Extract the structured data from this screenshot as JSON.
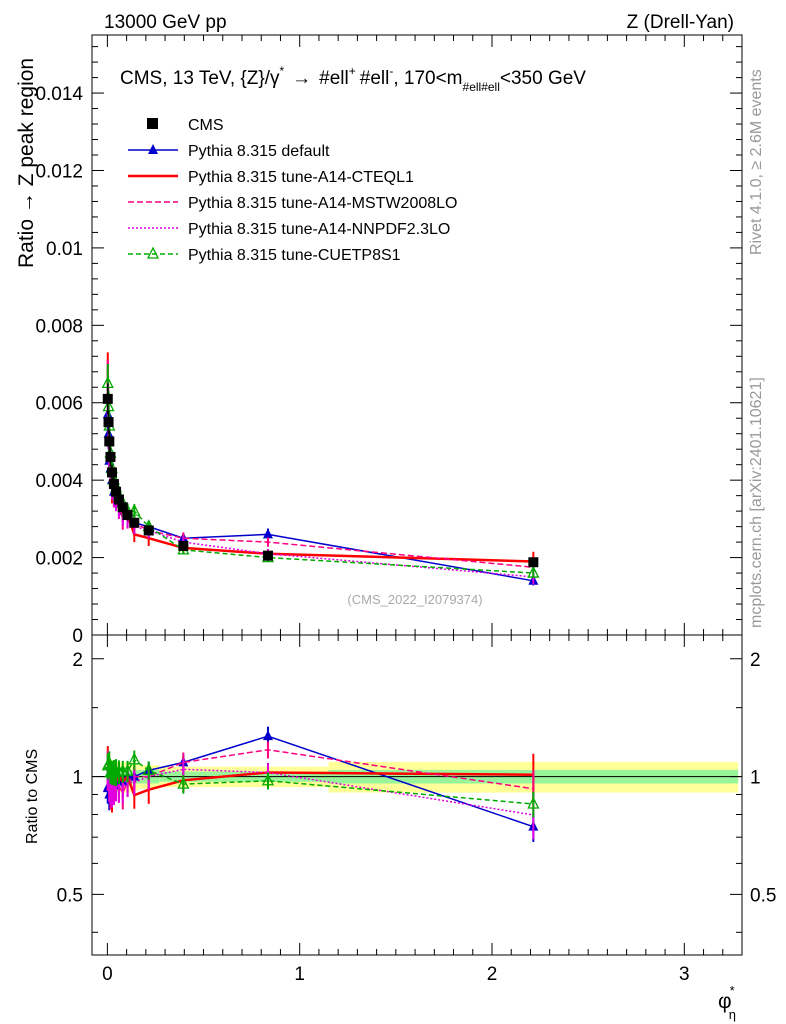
{
  "header": {
    "left": "13000 GeV pp",
    "right": "Z (Drell-Yan)"
  },
  "side_labels": {
    "rivet": "Rivet 4.1.0, ≥ 2.6M events",
    "mcplots": "mcplots.cern.ch [arXiv:2401.10621]"
  },
  "chart_data": {
    "type": "line",
    "title": "CMS, 13 TeV, {Z}/γ* → #ell⁺ #ell⁻, 170<m#ell#ell<350 GeV",
    "title_parts": {
      "a": "CMS, 13 TeV, {Z}/γ",
      "a_sup": "*",
      "arrow": "→",
      "b": "#ell",
      "b_sup": "+",
      "c": "#ell",
      "c_sup": "-",
      "d": ", 170<m",
      "d_sub": "#ell#ell",
      "e": "<350 GeV"
    },
    "xlabel": "φ",
    "xlabel_sup": "*",
    "xlabel_sub": "η",
    "ylabel": "Ratio → Z peak region",
    "ratio_ylabel": "Ratio to CMS",
    "watermark": "(CMS_2022_I2079374)",
    "xlim": [
      -0.08,
      3.3
    ],
    "ylim": [
      0,
      0.0155
    ],
    "ratio_ylim": [
      0.35,
      2.3
    ],
    "x_ticks": [
      0,
      1,
      2,
      3
    ],
    "x_tick_labels": [
      "0",
      "1",
      "2",
      "3"
    ],
    "y_ticks": [
      0,
      0.002,
      0.004,
      0.006,
      0.008,
      0.01,
      0.012,
      0.014
    ],
    "y_tick_labels": [
      "0",
      "0.002",
      "0.004",
      "0.006",
      "0.008",
      "0.01",
      "0.012",
      "0.014"
    ],
    "ratio_ticks": [
      0.5,
      1,
      2
    ],
    "ratio_tick_labels": [
      "0.5",
      "1",
      "2"
    ],
    "x": [
      0.002,
      0.006,
      0.01,
      0.016,
      0.024,
      0.034,
      0.045,
      0.06,
      0.08,
      0.105,
      0.14,
      0.215,
      0.395,
      0.835,
      2.215
    ],
    "x_edges": [
      0,
      0.004,
      0.008,
      0.012,
      0.02,
      0.028,
      0.04,
      0.05,
      0.07,
      0.09,
      0.12,
      0.16,
      0.27,
      0.52,
      1.15,
      3.28
    ],
    "data": {
      "name": "CMS",
      "values": [
        0.0061,
        0.0055,
        0.005,
        0.0046,
        0.0042,
        0.0039,
        0.0037,
        0.0035,
        0.0033,
        0.0031,
        0.0029,
        0.0027,
        0.0023,
        0.00205,
        0.00188
      ],
      "errors": [
        0.0004,
        0.0003,
        0.0003,
        0.00025,
        0.0002,
        0.0002,
        0.0002,
        0.00018,
        0.00016,
        0.00015,
        0.00012,
        0.0001,
        8e-05,
        7e-05,
        6e-05
      ],
      "band_inner": [
        0.08,
        0.06,
        0.06,
        0.055,
        0.05,
        0.05,
        0.05,
        0.05,
        0.05,
        0.05,
        0.04,
        0.04,
        0.03,
        0.03,
        0.04
      ],
      "band_outer": [
        0.14,
        0.12,
        0.12,
        0.11,
        0.1,
        0.1,
        0.1,
        0.09,
        0.09,
        0.09,
        0.08,
        0.07,
        0.06,
        0.06,
        0.09
      ]
    },
    "series": [
      {
        "name": "Pythia 8.315 default",
        "color": "#0000cc",
        "dash": "",
        "marker": "triangle-filled",
        "values": [
          0.0057,
          0.0052,
          0.0045,
          0.0043,
          0.004,
          0.0037,
          0.0037,
          0.0034,
          0.0032,
          0.0031,
          0.0029,
          0.0028,
          0.0025,
          0.0026,
          0.0014
        ],
        "errors": [
          0.0005,
          0.0004,
          0.0004,
          0.0003,
          0.0003,
          0.0003,
          0.0003,
          0.00025,
          0.00022,
          0.0002,
          0.00018,
          0.00015,
          0.00012,
          0.00015,
          0.00012
        ]
      },
      {
        "name": "Pythia 8.315 tune-A14-CTEQL1",
        "color": "#ff0000",
        "dash": "",
        "marker": "none",
        "values": [
          0.0066,
          0.0058,
          0.0049,
          0.0044,
          0.0038,
          0.0036,
          0.0036,
          0.0035,
          0.0032,
          0.0031,
          0.0026,
          0.0025,
          0.00225,
          0.0021,
          0.0019
        ],
        "errors": [
          0.0007,
          0.0005,
          0.0005,
          0.0004,
          0.0004,
          0.0003,
          0.0003,
          0.0003,
          0.00028,
          0.00025,
          0.0002,
          0.0002,
          0.00015,
          0.00012,
          0.00025
        ]
      },
      {
        "name": "Pythia 8.315 tune-A14-MSTW2008LO",
        "color": "#ff0080",
        "dash": "6,3",
        "marker": "none",
        "values": [
          0.0064,
          0.0056,
          0.0048,
          0.0042,
          0.0039,
          0.0037,
          0.0035,
          0.0033,
          0.003,
          0.003,
          0.0029,
          0.0027,
          0.0025,
          0.0024,
          0.00175
        ],
        "errors": [
          0.0007,
          0.0005,
          0.0005,
          0.0004,
          0.0004,
          0.0003,
          0.0003,
          0.0003,
          0.00028,
          0.00025,
          0.0002,
          0.0002,
          0.00015,
          0.00012,
          0.0002
        ]
      },
      {
        "name": "Pythia 8.315 tune-A14-NNPDF2.3LO",
        "color": "#e000e0",
        "dash": "2,2",
        "marker": "none",
        "values": [
          0.0063,
          0.0057,
          0.0048,
          0.0043,
          0.0039,
          0.0036,
          0.0035,
          0.0033,
          0.0031,
          0.003,
          0.0028,
          0.0027,
          0.0024,
          0.0021,
          0.0015
        ],
        "errors": [
          0.0007,
          0.0005,
          0.0005,
          0.0004,
          0.0004,
          0.0003,
          0.0003,
          0.0003,
          0.00028,
          0.00025,
          0.0002,
          0.0002,
          0.00015,
          0.00012,
          0.0002
        ]
      },
      {
        "name": "Pythia 8.315 tune-CUETP8S1",
        "color": "#00aa00",
        "dash": "5,3",
        "marker": "triangle-open",
        "values": [
          0.0065,
          0.0059,
          0.0054,
          0.0047,
          0.0043,
          0.004,
          0.0038,
          0.0036,
          0.0034,
          0.0032,
          0.0032,
          0.0028,
          0.0022,
          0.002,
          0.0016
        ],
        "errors": [
          0.0005,
          0.0004,
          0.0004,
          0.0003,
          0.0003,
          0.0003,
          0.0003,
          0.00025,
          0.00022,
          0.0002,
          0.00018,
          0.00015,
          0.00012,
          0.0001,
          0.00012
        ]
      }
    ],
    "legend_position": "top-left"
  }
}
